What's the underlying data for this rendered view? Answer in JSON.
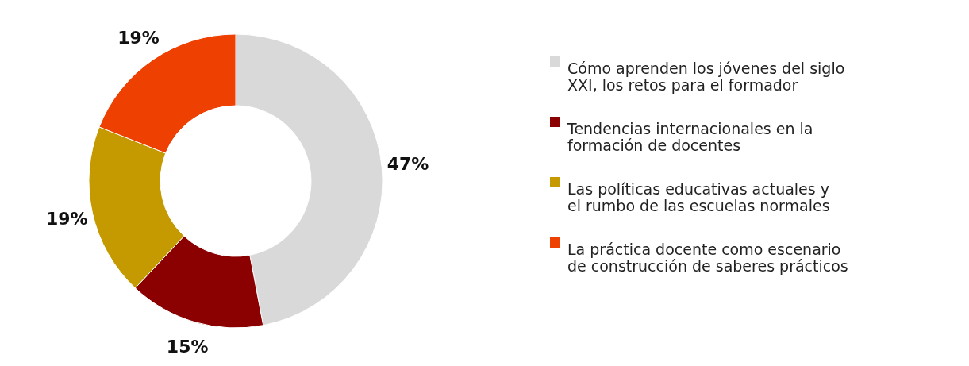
{
  "chart_data": {
    "type": "donut",
    "categories": [
      "Cómo aprenden los jóvenes del siglo XXI, los retos para el formador",
      "Tendencias internacionales en la formación de docentes",
      "Las políticas educativas actuales y el rumbo de las escuelas normales",
      "La práctica docente como escenario de construcción de saberes prácticos"
    ],
    "values": [
      47,
      15,
      19,
      19
    ],
    "colors": [
      "#d9d9d9",
      "#8b0000",
      "#c49a00",
      "#ee4000"
    ],
    "value_labels": [
      "47%",
      "15%",
      "19%",
      "19%"
    ],
    "legend": "right"
  }
}
